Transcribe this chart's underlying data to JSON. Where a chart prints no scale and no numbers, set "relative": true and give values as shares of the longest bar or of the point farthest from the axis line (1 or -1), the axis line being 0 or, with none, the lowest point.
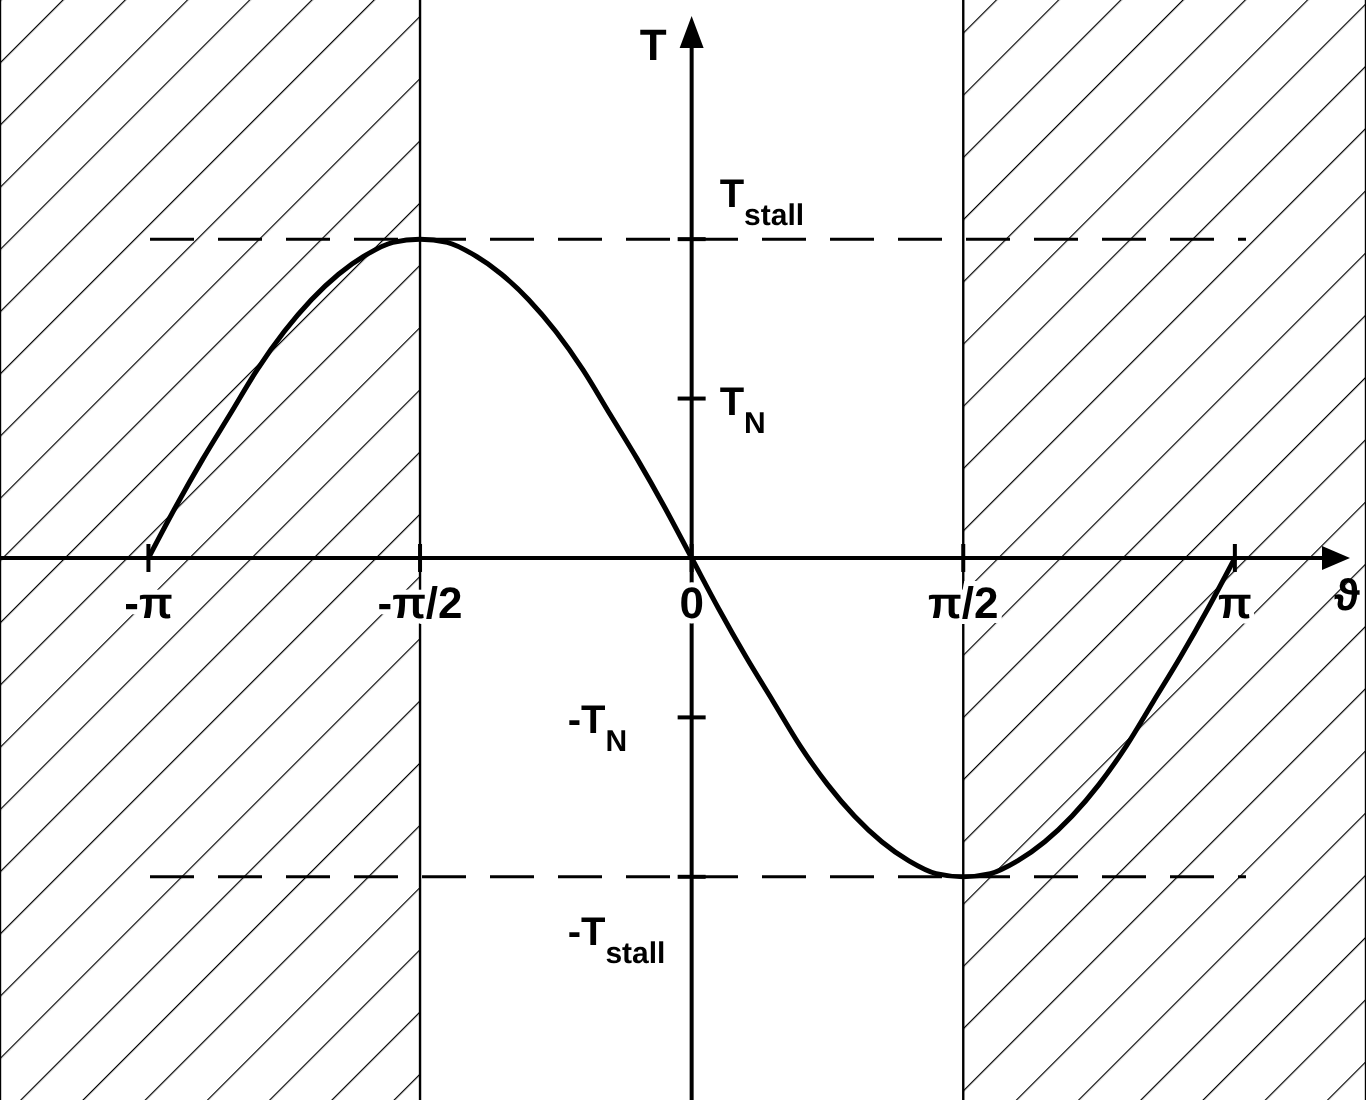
{
  "chart_data": {
    "type": "line",
    "xlabel": "ϑ",
    "ylabel": "T",
    "relative": true,
    "xlim": [
      -4,
      3.9
    ],
    "xticks": [
      {
        "value": -3.1416,
        "label": "-π"
      },
      {
        "value": -1.5708,
        "label": "-π/2"
      },
      {
        "value": 0,
        "label": "0"
      },
      {
        "value": 1.5708,
        "label": "π/2"
      },
      {
        "value": 3.1416,
        "label": "π"
      }
    ],
    "annotations": [
      {
        "text": "T$_{stall}$",
        "y": 1
      },
      "T$_{N}$",
      "-T$_{N}$",
      {
        "text": "-T$_{stall}$",
        "y": -1
      }
    ],
    "line_style": "solid",
    "ref_lines": [
      {
        "axis": "y",
        "value": 1,
        "line_style": "dashed",
        "color": "#000000"
      },
      {
        "axis": "y",
        "value": -1,
        "line_style": "dashed",
        "color": "#000000"
      }
    ],
    "bands": [
      {
        "axis": "x",
        "from": -4,
        "to": -1.5708,
        "color": "#000000"
      },
      {
        "axis": "x",
        "from": 1.5708,
        "to": 3.9,
        "color": "#000000"
      }
    ],
    "series": [
      {
        "color": "#000000",
        "x": [
          -3.1416,
          -2.9845,
          -2.8274,
          -2.6704,
          -2.5133,
          -2.3562,
          -2.1991,
          -2.042,
          -1.885,
          -1.7279,
          -1.5708,
          -1.4137,
          -1.2566,
          -1.0996,
          -0.9425,
          -0.7854,
          -0.6283,
          -0.4712,
          -0.3142,
          -0.1571,
          0,
          0.1571,
          0.3142,
          0.4712,
          0.6283,
          0.7854,
          0.9425,
          1.0996,
          1.2566,
          1.4137,
          1.5708,
          1.7279,
          1.885,
          2.042,
          2.1991,
          2.3562,
          2.5133,
          2.6704,
          2.8274,
          2.9845,
          3.1416
        ],
        "values": [
          0,
          0.16,
          0.31,
          0.45,
          0.59,
          0.71,
          0.81,
          0.89,
          0.95,
          0.99,
          1,
          0.99,
          0.95,
          0.89,
          0.81,
          0.71,
          0.59,
          0.45,
          0.31,
          0.16,
          0,
          -0.16,
          -0.31,
          -0.45,
          -0.59,
          -0.71,
          -0.81,
          -0.89,
          -0.95,
          -0.99,
          -1,
          -0.99,
          -0.95,
          -0.89,
          -0.81,
          -0.71,
          -0.59,
          -0.45,
          -0.31,
          -0.16,
          0
        ]
      }
    ]
  }
}
